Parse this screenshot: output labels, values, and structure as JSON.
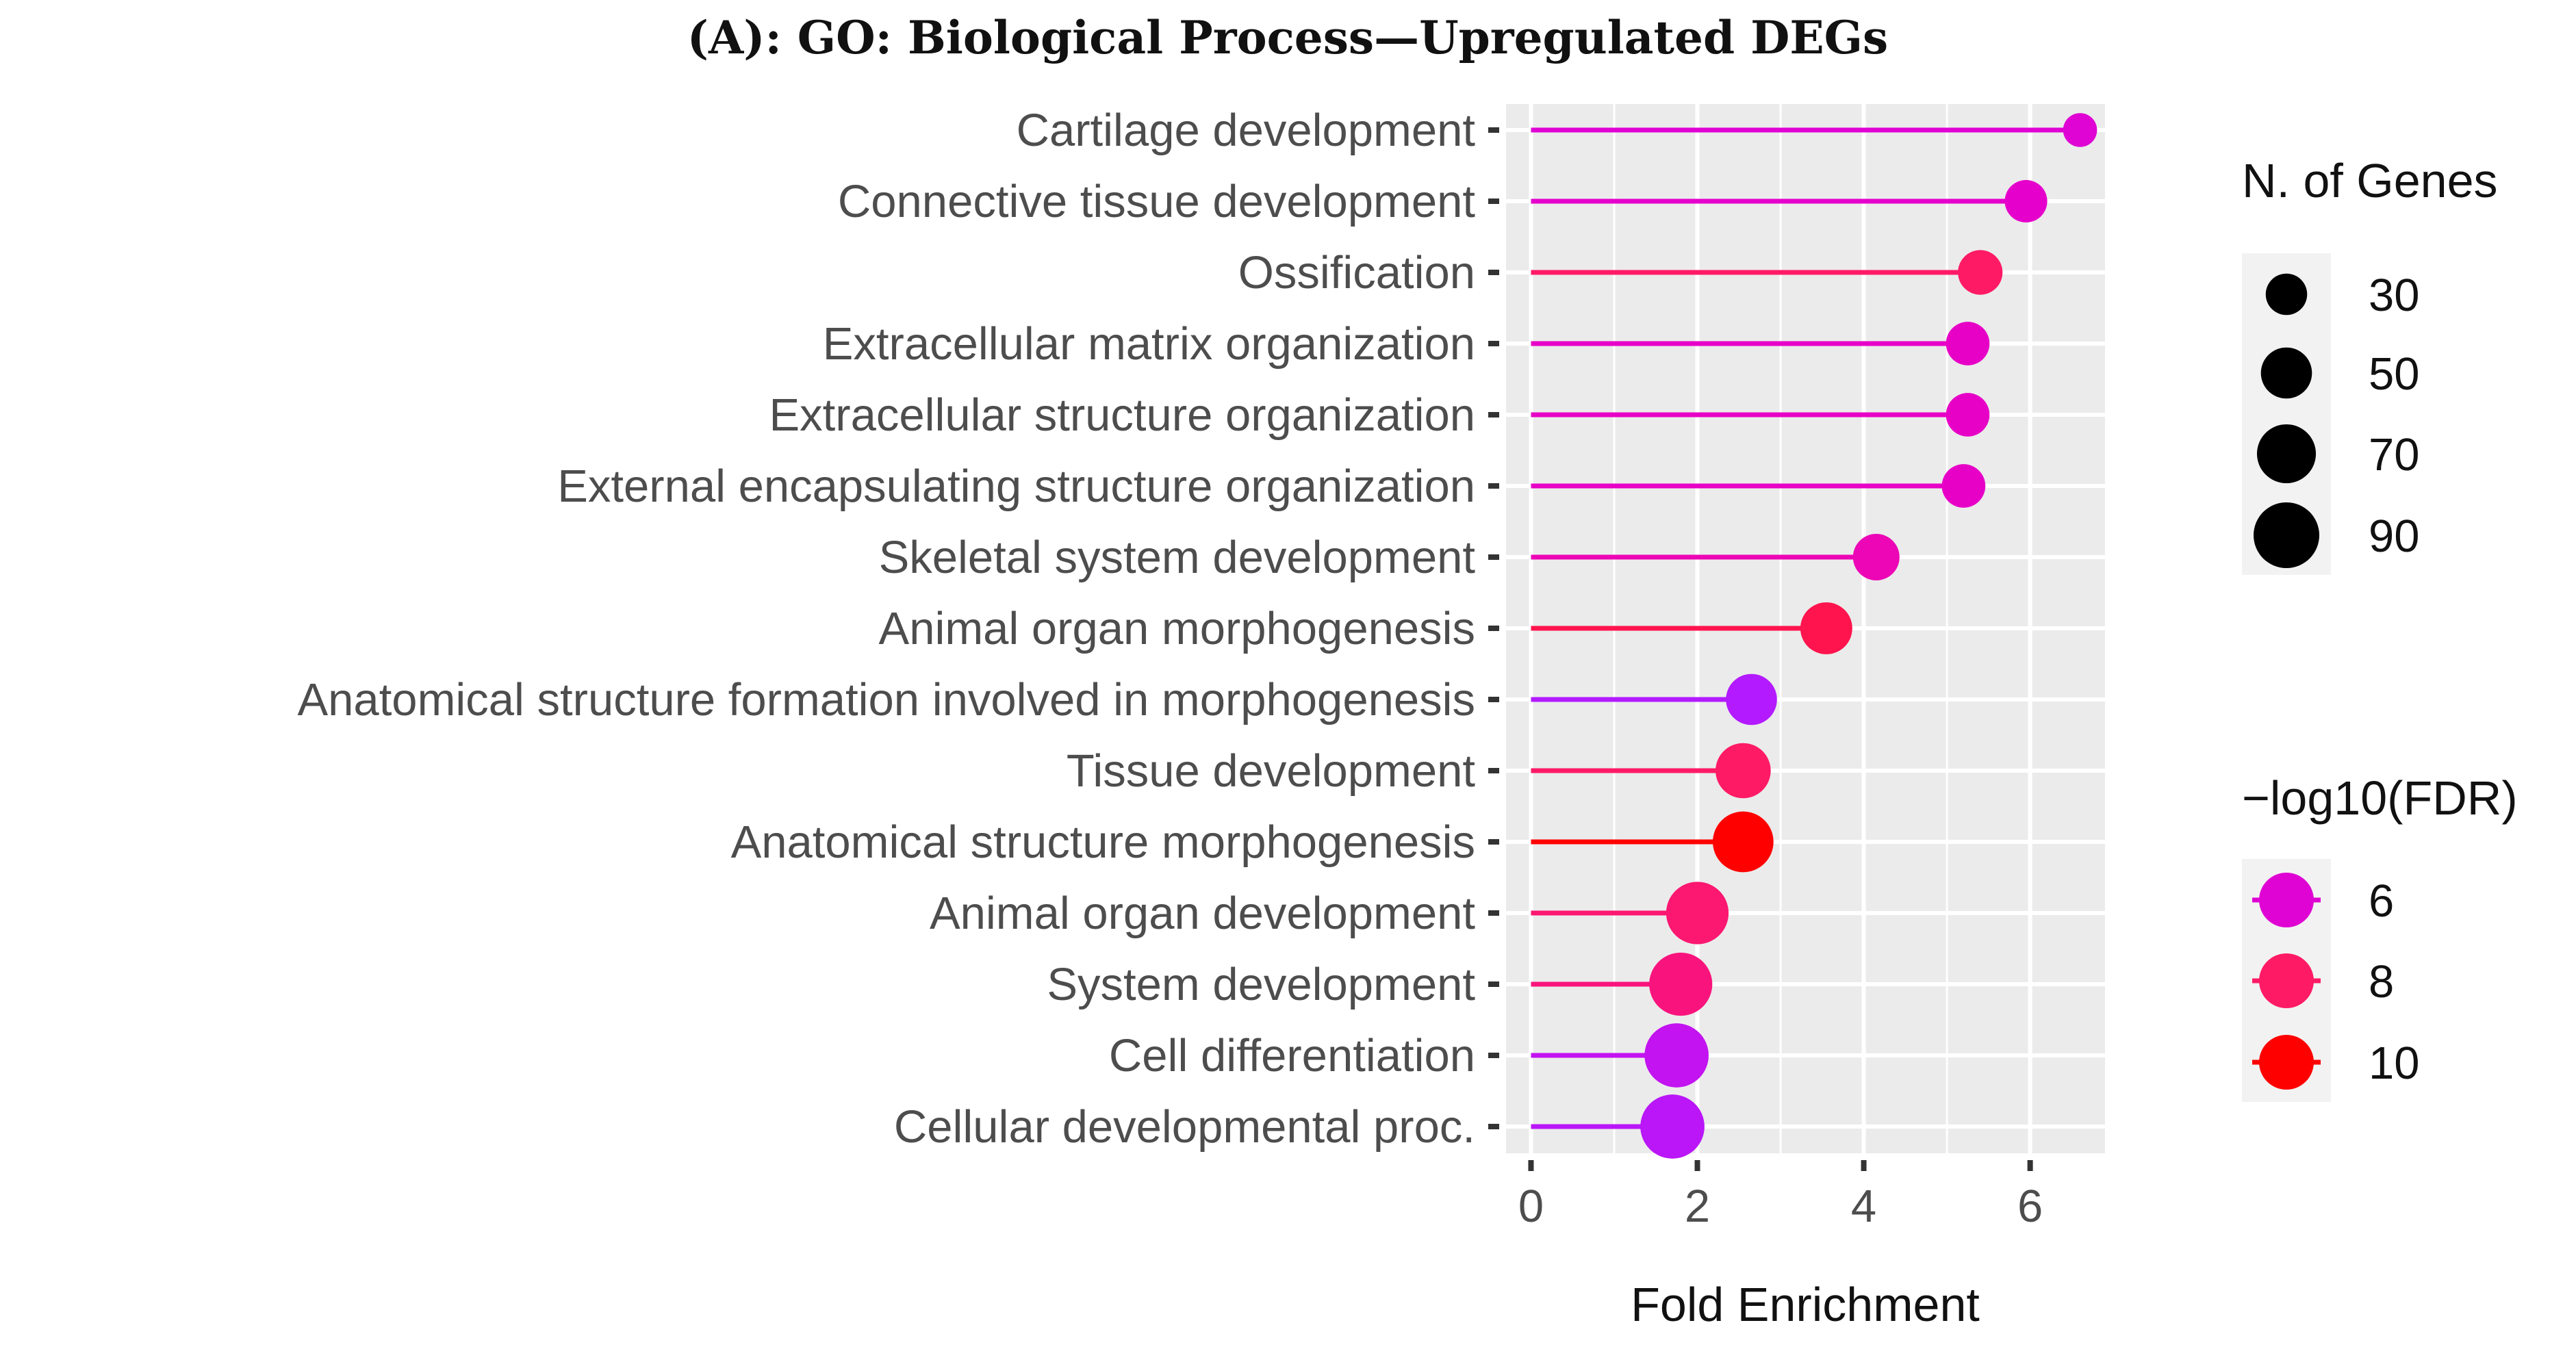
{
  "chart_data": {
    "type": "lollipop",
    "title": "(A): GO: Biological Process—Upregulated DEGs",
    "xlabel": "Fold Enrichment",
    "ylabel": "",
    "xlim": [
      -0.3,
      6.9
    ],
    "xticks": [
      0,
      2,
      4,
      6
    ],
    "grid": true,
    "categories": [
      "Cartilage development",
      "Connective tissue development",
      "Ossification",
      "Extracellular matrix organization",
      "Extracellular structure organization",
      "External encapsulating structure organization",
      "Skeletal system development",
      "Animal organ morphogenesis",
      "Anatomical structure formation involved in morphogenesis",
      "Tissue development",
      "Anatomical structure morphogenesis",
      "Animal organ development",
      "System development",
      "Cell differentiation",
      "Cellular developmental proc."
    ],
    "fold_enrichment": [
      6.6,
      5.95,
      5.4,
      5.25,
      5.25,
      5.2,
      4.15,
      3.55,
      2.65,
      2.55,
      2.55,
      2.0,
      1.8,
      1.75,
      1.7
    ],
    "n_genes": [
      18,
      32,
      36,
      34,
      34,
      34,
      40,
      52,
      50,
      60,
      75,
      80,
      82,
      85,
      85
    ],
    "neg_log10_fdr": [
      6.0,
      6.2,
      8.0,
      6.3,
      6.3,
      6.3,
      6.6,
      8.5,
      4.8,
      8.0,
      10.0,
      7.8,
      7.6,
      5.2,
      5.0
    ],
    "legend_size": {
      "title": "N. of Genes",
      "labels": [
        "30",
        "50",
        "70",
        "90"
      ],
      "values": [
        30,
        50,
        70,
        90
      ]
    },
    "legend_color": {
      "title": "−log10(FDR)",
      "labels": [
        "6",
        "8",
        "10"
      ],
      "values": [
        6,
        8,
        10
      ]
    },
    "colors": {
      "low": "#b31aff",
      "mid": "#e600cc",
      "high": "#ff1a66",
      "top": "#ff0000",
      "panel": "#ebebeb",
      "grid": "#ffffff"
    }
  }
}
